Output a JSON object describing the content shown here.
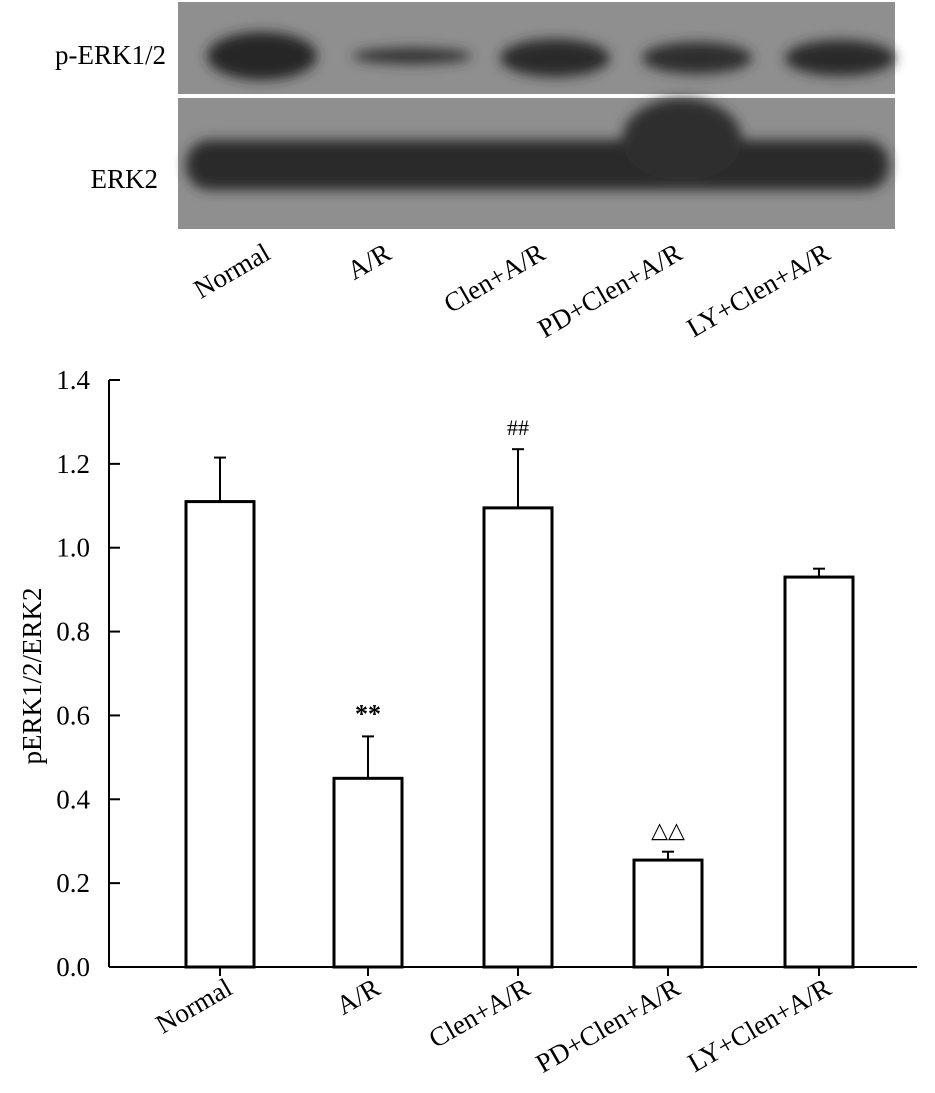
{
  "blot": {
    "rows": [
      {
        "label": "p-ERK1/2"
      },
      {
        "label": "ERK2"
      }
    ],
    "lanes": [
      "Normal",
      "A/R",
      "Clen+A/R",
      "PD+Clen+A/R",
      "LY+Clen+A/R"
    ]
  },
  "chart_data": {
    "type": "bar",
    "categories": [
      "Normal",
      "A/R",
      "Clen+A/R",
      "PD+Clen+A/R",
      "LY+Clen+A/R"
    ],
    "values": [
      1.11,
      0.45,
      1.095,
      0.255,
      0.93
    ],
    "errors": [
      0.105,
      0.1,
      0.14,
      0.02,
      0.02
    ],
    "annotations": [
      "",
      "**",
      "##",
      "△△",
      ""
    ],
    "ylabel": "pERK1/2/ERK2",
    "xlabel": "",
    "ylim": [
      0,
      1.4
    ],
    "yticks": [
      0.0,
      0.2,
      0.4,
      0.6,
      0.8,
      1.0,
      1.2,
      1.4
    ],
    "ytick_labels": [
      "0.0",
      "0.2",
      "0.4",
      "0.6",
      "0.8",
      "1.0",
      "1.2",
      "1.4"
    ],
    "grid": false,
    "legend": "none",
    "bar_fill": "#ffffff",
    "bar_stroke": "#000000"
  }
}
